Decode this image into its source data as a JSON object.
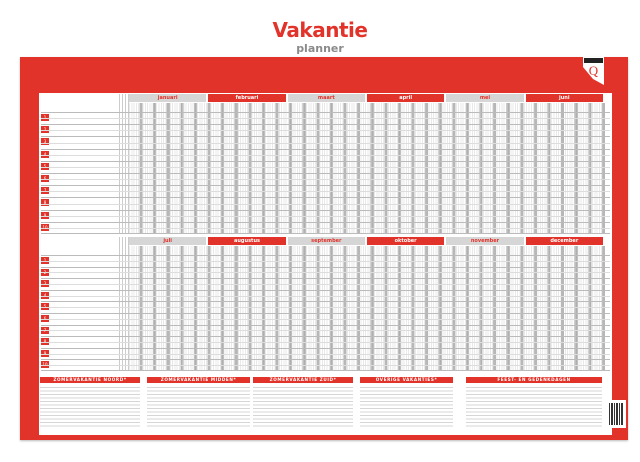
{
  "title": "Vakantie",
  "subtitle": "planner",
  "brand": "quantore",
  "brand_letter": "Q",
  "colors": {
    "accent": "#e2332a",
    "gray": "#d6d6d6"
  },
  "half1": [
    "januari",
    "februari",
    "maart",
    "april",
    "mei",
    "juni"
  ],
  "half2": [
    "juli",
    "augustus",
    "september",
    "oktober",
    "november",
    "december"
  ],
  "rows": [
    "1",
    "2",
    "3",
    "4",
    "5",
    "6",
    "7",
    "8",
    "9",
    "10"
  ],
  "footer": [
    "ZOMERVAKANTIE NOORD*",
    "ZOMERVAKANTIE MIDDEN*",
    "ZOMERVAKANTIE ZUID*",
    "OVERIGE VAKANTIES*",
    "FEEST- EN GEDENKDAGEN"
  ]
}
